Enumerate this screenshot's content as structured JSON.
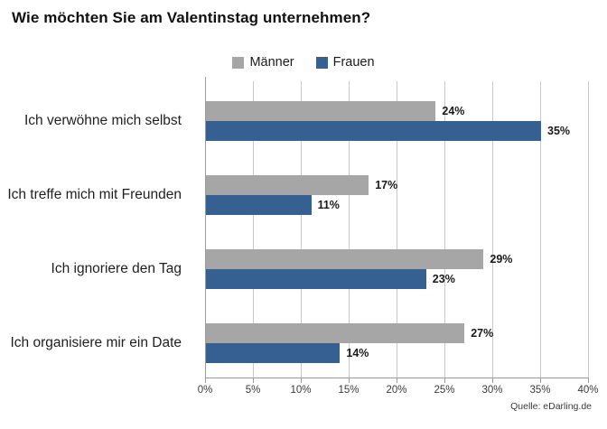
{
  "chart_data": {
    "type": "bar",
    "orientation": "horizontal",
    "title": "Wie möchten Sie am Valentinstag unternehmen?",
    "categories": [
      "Ich verwöhne mich selbst",
      "Ich treffe mich mit Freunden",
      "Ich ignoriere den Tag",
      "Ich organisiere mir ein Date"
    ],
    "series": [
      {
        "name": "Männer",
        "color": "#a6a6a6",
        "values": [
          24,
          17,
          29,
          27
        ]
      },
      {
        "name": "Frauen",
        "color": "#366092",
        "values": [
          35,
          11,
          23,
          14
        ]
      }
    ],
    "value_suffix": "%",
    "xlim": [
      0,
      40
    ],
    "x_tick_step": 5,
    "x_tick_labels": [
      "0%",
      "5%",
      "10%",
      "15%",
      "20%",
      "25%",
      "30%",
      "35%",
      "40%"
    ],
    "grid": "vertical-on",
    "legend_position": "top-center",
    "data_labels": "outside-end",
    "source": "Quelle: eDarling.de"
  }
}
